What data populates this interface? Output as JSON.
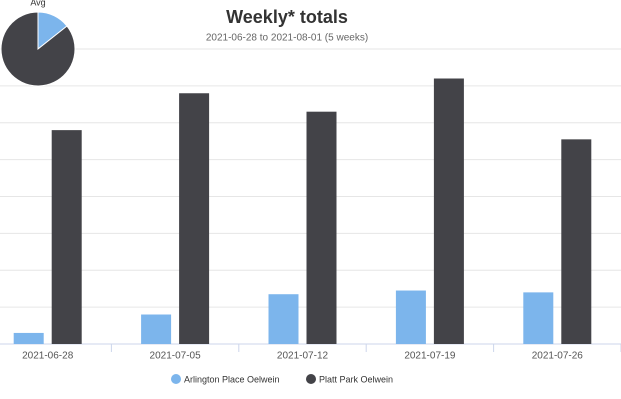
{
  "chart_data": [
    {
      "type": "bar",
      "title": "Weekly* totals",
      "subtitle": "2021-06-28 to 2021-08-01 (5 weeks)",
      "categories": [
        "2021-06-28",
        "2021-07-05",
        "2021-07-12",
        "2021-07-19",
        "2021-07-26"
      ],
      "series": [
        {
          "name": "Arlington Place Oelwein",
          "color": "#7cb5ec",
          "values": [
            0.3,
            0.8,
            1.35,
            1.45,
            1.4
          ]
        },
        {
          "name": "Platt Park Oelwein",
          "color": "#434348",
          "values": [
            5.8,
            6.8,
            6.3,
            7.2,
            5.55
          ]
        }
      ],
      "ylim": [
        0,
        8
      ],
      "yticks": [
        0,
        1,
        2,
        3,
        4,
        5,
        6,
        7,
        8
      ],
      "grid": true,
      "legend": "bottom"
    },
    {
      "type": "pie",
      "title": "Avg",
      "categories": [
        "Arlington Place Oelwein",
        "Platt Park Oelwein"
      ],
      "values": [
        1.06,
        6.33
      ],
      "colors": [
        "#7cb5ec",
        "#434348"
      ]
    }
  ]
}
